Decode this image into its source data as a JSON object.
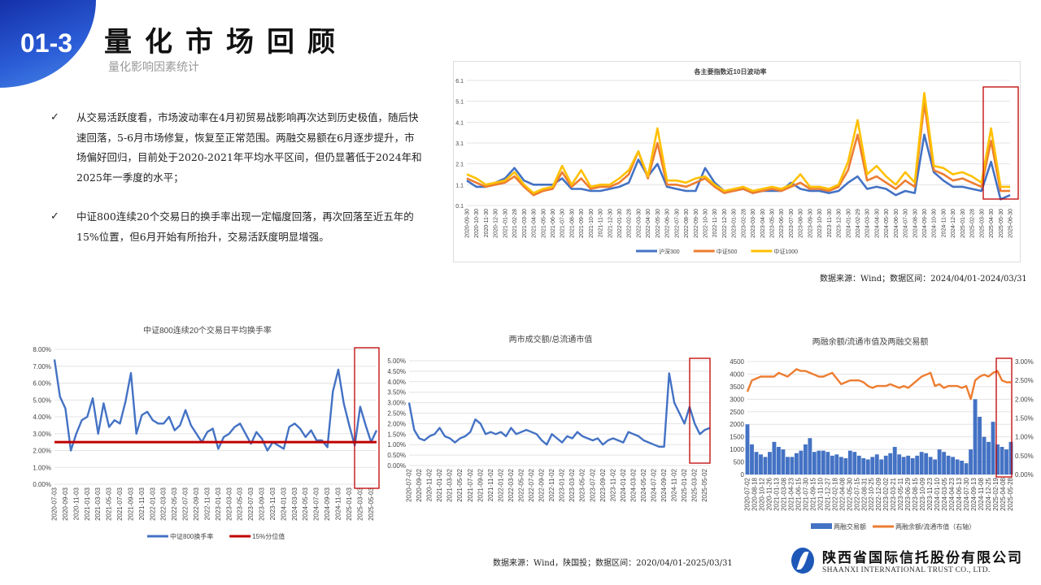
{
  "header": {
    "section_number": "01-3",
    "title": "量化市场回顾",
    "subtitle": "量化影响因素统计"
  },
  "bullets": [
    {
      "icon": "check-icon",
      "text": "从交易活跃度看，市场波动率在4月初贸易战影响再次达到历史极值，随后快速回落，5-6月市场修复，恢复至正常范围。两融交易额在6月逐步提升，市场偏好回归，目前处于2020-2021年平均水平区间，但仍显著低于2024年和2025年一季度的水平；"
    },
    {
      "icon": "check-icon",
      "text": "中证800连续20个交易日的换手率出现一定幅度回落，再次回落至近五年的15%位置，但6月开始有所抬升，交易活跃度明显增强。"
    }
  ],
  "source_top": "数据来源：Wind；数据区间：2024/04/01-2024/03/31",
  "source_bottom": "数据来源：Wind，陕国投；数据区间：2020/04/01-2025/03/31",
  "logo": {
    "name_cn": "陕西省国际信托股份有限公司",
    "name_en": "SHAANXI INTERNATIONAL TRUST CO., LTD.",
    "color": "#1d58b8"
  },
  "highlight_color": "#c00000",
  "chart_data": [
    {
      "type": "line",
      "title": "各主要指数近10日波动率",
      "ylim": [
        0.1,
        6.1
      ],
      "yticks": [
        "0.1",
        "1.1",
        "2.1",
        "3.1",
        "4.1",
        "5.1",
        "6.1"
      ],
      "grid": true,
      "legend": "bottom",
      "x": [
        "2020-09-30",
        "2020-10-30",
        "2020-11-30",
        "2020-12-30",
        "2021-01-30",
        "2021-02-28",
        "2021-03-30",
        "2021-04-30",
        "2021-05-30",
        "2021-06-30",
        "2021-07-30",
        "2021-08-30",
        "2021-09-30",
        "2021-10-30",
        "2021-11-30",
        "2021-12-30",
        "2022-01-30",
        "2022-02-28",
        "2022-03-30",
        "2022-04-30",
        "2022-05-30",
        "2022-06-30",
        "2022-07-30",
        "2022-08-30",
        "2022-09-30",
        "2022-10-30",
        "2022-11-30",
        "2022-12-30",
        "2023-01-30",
        "2023-02-28",
        "2023-03-30",
        "2023-04-30",
        "2023-05-30",
        "2023-06-30",
        "2023-07-30",
        "2023-08-30",
        "2023-09-30",
        "2023-10-30",
        "2023-11-30",
        "2023-12-30",
        "2024-01-30",
        "2024-02-29",
        "2024-03-30",
        "2024-04-30",
        "2024-05-30",
        "2024-06-30",
        "2024-07-30",
        "2024-08-30",
        "2024-09-30",
        "2024-10-30",
        "2024-11-30",
        "2024-12-30",
        "2025-01-30",
        "2025-02-28",
        "2025-03-30",
        "2025-04-30",
        "2025-05-30",
        "2025-06-30"
      ],
      "series": [
        {
          "name": "沪深300",
          "color": "#4472c4",
          "values": [
            1.3,
            1.0,
            1.0,
            1.2,
            1.4,
            1.9,
            1.3,
            1.1,
            1.1,
            1.1,
            1.4,
            0.9,
            0.9,
            0.8,
            0.8,
            0.9,
            1.0,
            1.2,
            2.3,
            1.5,
            2.1,
            1.0,
            0.9,
            0.8,
            0.8,
            1.9,
            1.2,
            0.8,
            0.8,
            0.9,
            0.7,
            0.8,
            0.8,
            0.8,
            1.2,
            0.9,
            0.8,
            0.8,
            0.7,
            0.8,
            1.2,
            1.5,
            0.9,
            1.0,
            0.9,
            0.6,
            0.8,
            0.7,
            3.5,
            1.7,
            1.3,
            1.0,
            1.0,
            0.9,
            0.8,
            2.2,
            0.4,
            0.6
          ]
        },
        {
          "name": "中证500",
          "color": "#ed7d31",
          "values": [
            1.4,
            1.2,
            1.0,
            1.1,
            1.2,
            1.5,
            1.0,
            0.6,
            0.8,
            0.9,
            1.7,
            1.0,
            1.4,
            0.9,
            1.0,
            1.0,
            1.2,
            1.6,
            2.7,
            1.4,
            3.1,
            1.1,
            1.1,
            1.0,
            1.2,
            1.4,
            1.0,
            0.7,
            0.8,
            0.9,
            0.7,
            0.8,
            0.9,
            0.8,
            1.0,
            1.2,
            0.9,
            0.9,
            0.8,
            1.0,
            1.8,
            3.5,
            1.3,
            1.5,
            1.2,
            0.9,
            1.3,
            1.0,
            5.0,
            1.8,
            1.6,
            1.3,
            1.4,
            1.2,
            1.0,
            3.2,
            0.8,
            0.8
          ]
        },
        {
          "name": "中证1000",
          "color": "#ffc000",
          "values": [
            1.6,
            1.4,
            1.1,
            1.2,
            1.3,
            1.7,
            1.1,
            0.7,
            0.9,
            1.0,
            2.0,
            1.1,
            1.8,
            1.0,
            1.1,
            1.1,
            1.4,
            1.8,
            2.7,
            1.5,
            3.8,
            1.3,
            1.3,
            1.2,
            1.4,
            1.5,
            1.1,
            0.8,
            0.9,
            1.0,
            0.8,
            0.9,
            1.0,
            0.9,
            1.1,
            1.6,
            1.0,
            1.0,
            0.9,
            1.1,
            2.2,
            4.2,
            1.6,
            2.0,
            1.5,
            1.1,
            1.7,
            1.2,
            5.5,
            2.0,
            1.9,
            1.6,
            1.7,
            1.5,
            1.2,
            3.8,
            1.0,
            1.0
          ]
        }
      ]
    },
    {
      "type": "line",
      "title": "中证800连续20个交易日平均换手率",
      "ylim": [
        0,
        8
      ],
      "yticks": [
        "0.00%",
        "1.00%",
        "2.00%",
        "3.00%",
        "4.00%",
        "5.00%",
        "6.00%",
        "7.00%",
        "8.00%"
      ],
      "grid": true,
      "legend": "bottom",
      "xticks": [
        "2020-07-03",
        "2020-09-03",
        "2020-11-03",
        "2021-01-03",
        "2021-03-03",
        "2021-05-03",
        "2021-07-03",
        "2021-09-03",
        "2021-11-03",
        "2022-01-03",
        "2022-03-03",
        "2022-05-03",
        "2022-07-03",
        "2022-09-03",
        "2022-11-03",
        "2023-01-03",
        "2023-03-03",
        "2023-05-03",
        "2023-07-03",
        "2023-09-03",
        "2023-11-03",
        "2024-01-03",
        "2024-03-03",
        "2024-05-03",
        "2024-07-03",
        "2024-09-03",
        "2024-11-03",
        "2025-01-03",
        "2025-03-03",
        "2025-05-03"
      ],
      "series": [
        {
          "name": "中证800换手率",
          "color": "#4472c4",
          "values": [
            7.4,
            5.2,
            4.5,
            2.0,
            3.0,
            3.8,
            4.0,
            5.1,
            3.0,
            4.8,
            3.4,
            3.8,
            3.6,
            4.9,
            6.6,
            3.0,
            4.1,
            4.3,
            3.8,
            3.6,
            3.6,
            4.0,
            3.2,
            3.5,
            4.4,
            3.5,
            3.0,
            2.5,
            3.1,
            3.3,
            2.1,
            2.8,
            3.0,
            3.4,
            3.6,
            3.0,
            2.4,
            3.1,
            2.7,
            2.0,
            2.5,
            2.3,
            2.1,
            3.4,
            3.6,
            3.3,
            2.8,
            3.2,
            2.6,
            2.6,
            2.2,
            5.5,
            6.8,
            4.8,
            3.5,
            2.3,
            4.6,
            3.5,
            2.5,
            3.2
          ]
        },
        {
          "name": "15%分位值",
          "color": "#c00000",
          "constant": 2.5
        }
      ]
    },
    {
      "type": "line",
      "title": "两市成交额/总流通市值",
      "ylim": [
        0,
        5
      ],
      "yticks": [
        "0.00%",
        "0.50%",
        "1.00%",
        "1.50%",
        "2.00%",
        "2.50%",
        "3.00%",
        "3.50%",
        "4.00%",
        "4.50%",
        "5.00%"
      ],
      "grid": true,
      "xticks": [
        "2020-07-02",
        "2020-09-02",
        "2020-11-02",
        "2021-01-02",
        "2021-03-02",
        "2021-05-02",
        "2021-07-02",
        "2021-09-02",
        "2021-11-02",
        "2022-01-02",
        "2022-03-02",
        "2022-05-02",
        "2022-07-02",
        "2022-09-02",
        "2022-11-02",
        "2023-01-02",
        "2023-03-02",
        "2023-05-02",
        "2023-07-02",
        "2023-09-02",
        "2023-11-02",
        "2024-01-02",
        "2024-03-02",
        "2024-05-02",
        "2024-07-02",
        "2024-09-02",
        "2024-11-02",
        "2025-01-02",
        "2025-03-02",
        "2025-05-02"
      ],
      "series": [
        {
          "color": "#4472c4",
          "values": [
            3.0,
            1.7,
            1.3,
            1.2,
            1.4,
            1.5,
            1.8,
            1.4,
            1.3,
            1.1,
            1.3,
            1.4,
            1.6,
            2.2,
            2.0,
            1.5,
            1.6,
            1.5,
            1.6,
            1.4,
            1.8,
            1.5,
            1.6,
            1.7,
            1.6,
            1.5,
            1.2,
            1.0,
            1.5,
            1.3,
            1.1,
            1.4,
            1.3,
            1.6,
            1.4,
            1.3,
            1.2,
            1.3,
            1.0,
            1.2,
            1.3,
            1.2,
            1.1,
            1.6,
            1.5,
            1.4,
            1.2,
            1.1,
            1.0,
            0.9,
            0.9,
            4.4,
            3.0,
            2.5,
            2.0,
            2.8,
            2.0,
            1.5,
            1.7,
            1.8
          ]
        }
      ]
    },
    {
      "type": "bar+line",
      "title": "两融余额/流通市值及两融交易额",
      "ylim": [
        0,
        4500
      ],
      "yticks": [
        "0",
        "500",
        "1000",
        "1500",
        "2000",
        "2500",
        "3000",
        "3500",
        "4000",
        "4500"
      ],
      "y2lim": [
        0,
        3
      ],
      "y2ticks": [
        "0.00%",
        "0.50%",
        "1.00%",
        "1.50%",
        "2.00%",
        "2.50%",
        "3.00%"
      ],
      "grid": true,
      "legend": "bottom",
      "xticks": [
        "2020-07-02",
        "2020-08-18",
        "2020-10-12",
        "2020-11-26",
        "2021-01-13",
        "2021-03-08",
        "2021-04-23",
        "2021-06-15",
        "2021-07-30",
        "2021-09-15",
        "2021-11-10",
        "2021-12-27",
        "2022-02-18",
        "2022-04-08",
        "2022-05-30",
        "2022-07-15",
        "2022-08-31",
        "2022-10-25",
        "2022-12-09",
        "2023-02-02",
        "2023-03-21",
        "2023-05-11",
        "2023-06-29",
        "2023-08-15",
        "2023-10-09",
        "2023-11-23",
        "2024-01-10",
        "2024-03-05",
        "2024-04-23",
        "2024-06-13",
        "2024-07-30",
        "2024-09-13",
        "2024-11-08",
        "2024-12-25",
        "2025-02-19",
        "2025-04-08",
        "2025-05-28"
      ],
      "series": [
        {
          "name": "两融交易额",
          "type": "bar",
          "axis": "left",
          "color": "#4472c4",
          "values": [
            2000,
            1200,
            900,
            800,
            700,
            900,
            1300,
            1100,
            1000,
            700,
            700,
            850,
            950,
            1200,
            1450,
            900,
            950,
            950,
            900,
            750,
            800,
            700,
            650,
            950,
            900,
            750,
            650,
            600,
            700,
            800,
            600,
            750,
            850,
            1100,
            800,
            700,
            750,
            650,
            750,
            900,
            850,
            700,
            600,
            1000,
            900,
            750,
            700,
            600,
            550,
            450,
            1000,
            3000,
            2300,
            1500,
            1300,
            2100,
            1200,
            1100,
            1000,
            1300
          ]
        },
        {
          "name": "两融余额/流通市值（右轴）",
          "type": "line",
          "axis": "right",
          "color": "#ed7d31",
          "values": [
            2.2,
            2.5,
            2.55,
            2.6,
            2.6,
            2.6,
            2.6,
            2.7,
            2.65,
            2.6,
            2.7,
            2.8,
            2.75,
            2.75,
            2.7,
            2.65,
            2.6,
            2.6,
            2.65,
            2.7,
            2.55,
            2.4,
            2.45,
            2.5,
            2.5,
            2.5,
            2.45,
            2.35,
            2.3,
            2.35,
            2.35,
            2.35,
            2.4,
            2.35,
            2.3,
            2.35,
            2.3,
            2.4,
            2.5,
            2.6,
            2.65,
            2.7,
            2.35,
            2.4,
            2.3,
            2.35,
            2.35,
            2.35,
            2.3,
            2.35,
            2.0,
            2.5,
            2.6,
            2.65,
            2.6,
            2.7,
            2.75,
            2.5,
            2.45,
            2.45
          ]
        }
      ]
    }
  ]
}
